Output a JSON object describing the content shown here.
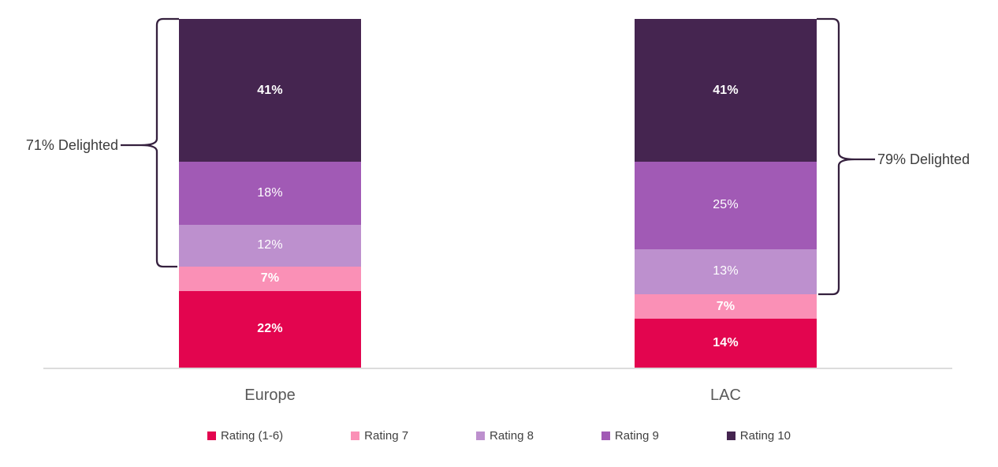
{
  "chart_data": {
    "type": "bar",
    "subtype": "stacked-100-percent-column",
    "title": "",
    "categories": [
      "Europe",
      "LAC"
    ],
    "series": [
      {
        "name": "Rating (1-6)",
        "color": "#e3054f",
        "values": [
          22,
          14
        ],
        "label_bold": true
      },
      {
        "name": "Rating 7",
        "color": "#fa90b6",
        "values": [
          7,
          7
        ],
        "label_bold": true
      },
      {
        "name": "Rating 8",
        "color": "#bd90ce",
        "values": [
          12,
          13
        ],
        "label_bold": false
      },
      {
        "name": "Rating 9",
        "color": "#a15ab5",
        "values": [
          18,
          25
        ],
        "label_bold": false
      },
      {
        "name": "Rating 10",
        "color": "#452550",
        "values": [
          41,
          41
        ],
        "label_bold": true
      }
    ],
    "stack_order_top_to_bottom": [
      "Rating 10",
      "Rating 9",
      "Rating 8",
      "Rating 7",
      "Rating (1-6)"
    ],
    "value_suffix": "%",
    "data_label_color": "#ffffff",
    "annotations": [
      {
        "text": "71% Delighted",
        "side": "left",
        "category_index": 0,
        "span_pct": 71
      },
      {
        "text": "79% Delighted",
        "side": "right",
        "category_index": 1,
        "span_pct": 79
      }
    ],
    "legend_position": "bottom",
    "grid": false,
    "ylim": [
      0,
      100
    ],
    "axis_line_color": "#dcdcdc",
    "brace_color": "#35203e",
    "category_label_color": "#595959",
    "annotation_color": "#3d3d3d",
    "legend_text_color": "#404040"
  }
}
